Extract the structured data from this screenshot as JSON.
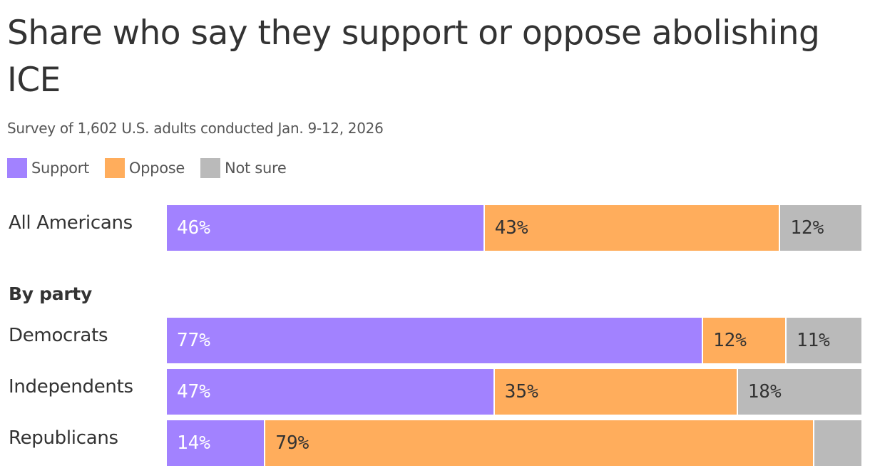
{
  "title": "Share who say they support or oppose abolishing ICE",
  "subtitle": "Survey of 1,602 U.S. adults conducted Jan. 9-12, 2026",
  "colors": {
    "support": "#a282ff",
    "oppose": "#ffad5c",
    "not_sure": "#bababa"
  },
  "chart_data": {
    "type": "bar",
    "orientation": "horizontal",
    "stacked": true,
    "title": "Share who say they support or oppose abolishing ICE",
    "subtitle": "Survey of 1,602 U.S. adults conducted Jan. 9-12, 2026",
    "legend": {
      "placement": "top-left",
      "entries": [
        "Support",
        "Oppose",
        "Not sure"
      ]
    },
    "categories": [
      "All Americans",
      "Democrats",
      "Independents",
      "Republicans"
    ],
    "group_heading": "By party",
    "series": [
      {
        "name": "Support",
        "values": [
          46,
          77,
          47,
          14
        ],
        "labels": [
          "46%",
          "77%",
          "47%",
          "14%"
        ]
      },
      {
        "name": "Oppose",
        "values": [
          43,
          12,
          35,
          79
        ],
        "labels": [
          "43%",
          "12%",
          "35%",
          "79%"
        ]
      },
      {
        "name": "Not sure",
        "values": [
          12,
          11,
          18,
          7
        ],
        "labels": [
          "12%",
          "11%",
          "18%",
          ""
        ]
      }
    ],
    "grid": false
  }
}
